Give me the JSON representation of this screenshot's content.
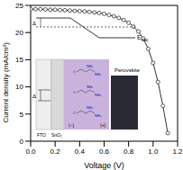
{
  "chart_data": {
    "type": "line",
    "x_label": "Voltage (V)",
    "y_label": "Current density (mA/cm²)",
    "x": [
      0,
      0.04,
      0.08,
      0.12,
      0.16,
      0.2,
      0.24,
      0.28,
      0.32,
      0.36,
      0.4,
      0.44,
      0.48,
      0.52,
      0.56,
      0.6,
      0.64,
      0.68,
      0.72,
      0.76,
      0.8,
      0.84,
      0.88,
      0.92,
      0.96,
      1.0,
      1.04,
      1.08,
      1.12
    ],
    "values": [
      24.3,
      24.3,
      24.3,
      24.25,
      24.2,
      24.2,
      24.15,
      24.1,
      24.05,
      24.0,
      23.95,
      23.9,
      23.8,
      23.7,
      23.6,
      23.45,
      23.25,
      23.0,
      22.7,
      22.3,
      21.8,
      21.1,
      20.2,
      18.9,
      17.0,
      14.4,
      10.9,
      6.5,
      1.5
    ],
    "color": "#333333",
    "marker": "circle",
    "xlim": [
      0,
      1.2
    ],
    "xticks": [
      {
        "value": 0,
        "label": "0.0"
      },
      {
        "value": 0.2,
        "label": "0.2"
      },
      {
        "value": 0.4,
        "label": "0.4"
      },
      {
        "value": 0.6,
        "label": "0.6"
      },
      {
        "value": 0.8,
        "label": "0.8"
      },
      {
        "value": 1.0,
        "label": "1.0"
      },
      {
        "value": 1.2,
        "label": "1.2"
      }
    ],
    "ylim": [
      0,
      25
    ],
    "yticks": [
      0,
      5,
      10,
      15,
      20,
      25
    ],
    "annotations": {
      "delta": "Δ",
      "e": "E",
      "vac": "vac",
      "fto": "FTO",
      "sno2": "SnO₂",
      "minus": "(−)",
      "plus": "(+)",
      "perovskite": "Perovskite",
      "o": "O",
      "nh2": "NH₂"
    }
  }
}
